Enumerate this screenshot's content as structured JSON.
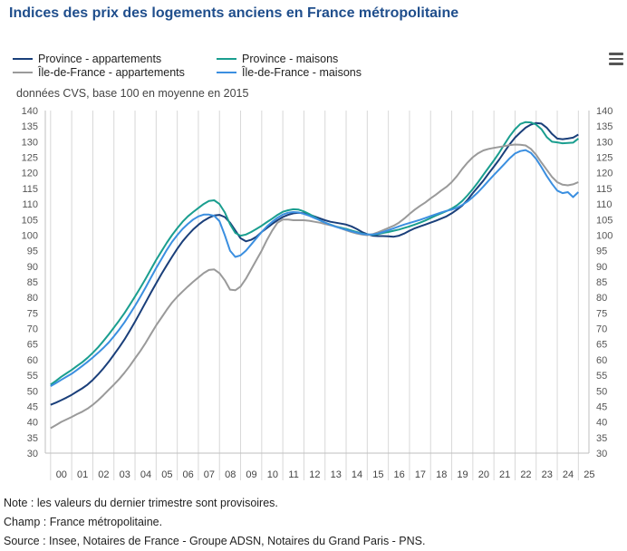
{
  "header": {
    "title": "Indices des prix des logements anciens en France métropolitaine"
  },
  "subtitle": "données CVS, base 100 en moyenne en 2015",
  "legend": [
    {
      "label": "Province - appartements",
      "color": "#1a3f7a"
    },
    {
      "label": "Province - maisons",
      "color": "#1a9e8f"
    },
    {
      "label": "Île-de-France - appartements",
      "color": "#9a9a9a"
    },
    {
      "label": "Île-de-France - maisons",
      "color": "#3b8fe0"
    }
  ],
  "menu_icon": "hamburger-menu-icon",
  "notes": {
    "note": "Note : les valeurs du dernier trimestre sont provisoires.",
    "champ": "Champ : France métropolitaine.",
    "source": "Source : Insee, Notaires de France - Groupe ADSN, Notaires du Grand Paris - PNS."
  },
  "chart_data": {
    "type": "line",
    "title": "Indices des prix des logements anciens en France métropolitaine",
    "ylabel": "données CVS, base 100 en moyenne en 2015",
    "xlabel": "",
    "x": [
      2000.0,
      2000.25,
      2000.5,
      2000.75,
      2001.0,
      2001.25,
      2001.5,
      2001.75,
      2002.0,
      2002.25,
      2002.5,
      2002.75,
      2003.0,
      2003.25,
      2003.5,
      2003.75,
      2004.0,
      2004.25,
      2004.5,
      2004.75,
      2005.0,
      2005.25,
      2005.5,
      2005.75,
      2006.0,
      2006.25,
      2006.5,
      2006.75,
      2007.0,
      2007.25,
      2007.5,
      2007.75,
      2008.0,
      2008.25,
      2008.5,
      2008.75,
      2009.0,
      2009.25,
      2009.5,
      2009.75,
      2010.0,
      2010.25,
      2010.5,
      2010.75,
      2011.0,
      2011.25,
      2011.5,
      2011.75,
      2012.0,
      2012.25,
      2012.5,
      2012.75,
      2013.0,
      2013.25,
      2013.5,
      2013.75,
      2014.0,
      2014.25,
      2014.5,
      2014.75,
      2015.0,
      2015.25,
      2015.5,
      2015.75,
      2016.0,
      2016.25,
      2016.5,
      2016.75,
      2017.0,
      2017.25,
      2017.5,
      2017.75,
      2018.0,
      2018.25,
      2018.5,
      2018.75,
      2019.0,
      2019.25,
      2019.5,
      2019.75,
      2020.0,
      2020.25,
      2020.5,
      2020.75,
      2021.0,
      2021.25,
      2021.5,
      2021.75,
      2022.0,
      2022.25,
      2022.5,
      2022.75,
      2023.0,
      2023.25,
      2023.5,
      2023.75,
      2024.0,
      2024.25,
      2024.5,
      2024.75,
      2025.0
    ],
    "xlim": [
      1999.75,
      2025.5
    ],
    "ylim": [
      30,
      140
    ],
    "xticks": [
      "00",
      "01",
      "02",
      "03",
      "04",
      "05",
      "06",
      "07",
      "08",
      "09",
      "10",
      "11",
      "12",
      "13",
      "14",
      "15",
      "16",
      "17",
      "18",
      "19",
      "20",
      "21",
      "22",
      "23",
      "24",
      "25"
    ],
    "yticks": [
      30,
      35,
      40,
      45,
      50,
      55,
      60,
      65,
      70,
      75,
      80,
      85,
      90,
      95,
      100,
      105,
      110,
      115,
      120,
      125,
      130,
      135,
      140
    ],
    "grid": "vertical",
    "legend_position": "top",
    "series": [
      {
        "name": "Province - appartements",
        "color": "#1a3f7a",
        "values": [
          45.5,
          46.2,
          47.0,
          47.8,
          48.7,
          49.8,
          50.8,
          52.0,
          53.5,
          55.3,
          57.2,
          59.3,
          61.6,
          64.0,
          66.5,
          69.3,
          72.2,
          75.3,
          78.4,
          81.5,
          84.5,
          87.5,
          90.3,
          93.0,
          95.6,
          98.0,
          100.0,
          101.8,
          103.3,
          104.6,
          105.6,
          106.3,
          106.5,
          105.8,
          104.0,
          101.5,
          99.0,
          98.0,
          98.5,
          99.5,
          101.0,
          102.3,
          103.6,
          104.8,
          105.8,
          106.5,
          107.0,
          107.2,
          107.0,
          106.6,
          106.0,
          105.4,
          104.8,
          104.3,
          104.0,
          103.7,
          103.4,
          102.8,
          102.0,
          101.0,
          100.3,
          99.8,
          99.7,
          99.7,
          99.6,
          99.5,
          99.8,
          100.5,
          101.4,
          102.2,
          102.8,
          103.4,
          104.0,
          104.6,
          105.3,
          106.0,
          107.0,
          108.2,
          109.5,
          111.3,
          113.5,
          115.5,
          117.5,
          119.8,
          122.0,
          124.3,
          126.8,
          129.2,
          131.3,
          133.0,
          134.5,
          135.5,
          136.0,
          135.8,
          134.5,
          132.5,
          131.0,
          130.8,
          131.0,
          131.3,
          132.3
        ]
      },
      {
        "name": "Province - maisons",
        "color": "#1a9e8f",
        "values": [
          52.0,
          53.2,
          54.5,
          55.6,
          56.7,
          58.0,
          59.2,
          60.6,
          62.2,
          64.0,
          66.0,
          68.1,
          70.3,
          72.6,
          75.0,
          77.6,
          80.3,
          83.1,
          86.0,
          89.0,
          92.0,
          94.8,
          97.5,
          100.0,
          102.2,
          104.3,
          106.0,
          107.4,
          108.7,
          110.0,
          111.0,
          111.2,
          110.0,
          107.3,
          103.5,
          100.7,
          99.8,
          100.2,
          101.0,
          102.0,
          103.0,
          104.2,
          105.3,
          106.5,
          107.5,
          108.0,
          108.3,
          108.2,
          107.6,
          106.8,
          105.8,
          104.8,
          104.0,
          103.4,
          102.8,
          102.4,
          102.0,
          101.5,
          101.0,
          100.5,
          100.2,
          100.1,
          100.3,
          100.7,
          101.0,
          101.4,
          101.8,
          102.3,
          102.8,
          103.4,
          104.0,
          104.7,
          105.5,
          106.3,
          107.0,
          107.7,
          108.5,
          109.6,
          111.0,
          112.8,
          114.8,
          117.0,
          119.4,
          121.7,
          124.0,
          126.5,
          129.2,
          131.8,
          134.0,
          135.7,
          136.3,
          136.2,
          135.5,
          134.0,
          131.5,
          130.0,
          129.8,
          129.5,
          129.6,
          129.7,
          131.0
        ]
      },
      {
        "name": "Île-de-France - appartements",
        "color": "#9a9a9a",
        "values": [
          38.0,
          39.0,
          40.0,
          40.8,
          41.6,
          42.5,
          43.3,
          44.3,
          45.5,
          47.0,
          48.6,
          50.3,
          52.0,
          53.8,
          55.8,
          58.0,
          60.4,
          62.8,
          65.4,
          68.2,
          71.0,
          73.5,
          76.0,
          78.3,
          80.2,
          81.9,
          83.5,
          85.0,
          86.4,
          87.8,
          88.8,
          89.0,
          87.8,
          85.5,
          82.5,
          82.3,
          83.5,
          86.0,
          89.0,
          92.0,
          95.0,
          98.5,
          101.5,
          104.0,
          105.0,
          105.0,
          104.8,
          104.8,
          104.8,
          104.6,
          104.3,
          104.0,
          103.6,
          103.2,
          102.8,
          102.2,
          101.6,
          101.0,
          100.5,
          100.2,
          100.0,
          100.3,
          100.9,
          101.6,
          102.3,
          103.0,
          104.0,
          105.3,
          106.8,
          108.2,
          109.4,
          110.5,
          111.8,
          113.0,
          114.3,
          115.5,
          117.0,
          119.0,
          121.3,
          123.3,
          125.0,
          126.3,
          127.2,
          127.7,
          128.0,
          128.3,
          128.6,
          128.9,
          129.1,
          129.0,
          128.8,
          127.7,
          125.8,
          123.3,
          121.0,
          118.7,
          117.0,
          116.2,
          116.0,
          116.3,
          117.0
        ]
      },
      {
        "name": "Île-de-France - maisons",
        "color": "#3b8fe0",
        "values": [
          51.5,
          52.5,
          53.5,
          54.5,
          55.5,
          56.7,
          58.0,
          59.3,
          60.7,
          62.2,
          63.8,
          65.5,
          67.5,
          69.7,
          72.0,
          74.6,
          77.3,
          80.2,
          83.2,
          86.3,
          89.4,
          92.3,
          95.2,
          97.8,
          100.0,
          102.0,
          103.6,
          105.0,
          106.0,
          106.6,
          106.6,
          106.2,
          104.5,
          100.0,
          95.0,
          93.0,
          93.5,
          95.0,
          97.0,
          99.0,
          101.0,
          102.8,
          104.3,
          105.6,
          106.6,
          107.2,
          107.4,
          107.3,
          106.8,
          106.2,
          105.5,
          104.8,
          104.0,
          103.3,
          102.7,
          102.2,
          101.7,
          101.2,
          100.8,
          100.4,
          100.2,
          100.2,
          100.5,
          101.0,
          101.6,
          102.2,
          102.8,
          103.4,
          103.9,
          104.4,
          104.9,
          105.5,
          106.1,
          106.7,
          107.3,
          107.8,
          108.2,
          108.8,
          109.7,
          110.8,
          112.2,
          113.8,
          115.6,
          117.5,
          119.3,
          121.1,
          122.9,
          124.7,
          126.2,
          127.0,
          127.3,
          126.4,
          124.5,
          121.8,
          119.0,
          116.5,
          114.3,
          113.5,
          113.8,
          112.2,
          113.8
        ]
      }
    ]
  }
}
